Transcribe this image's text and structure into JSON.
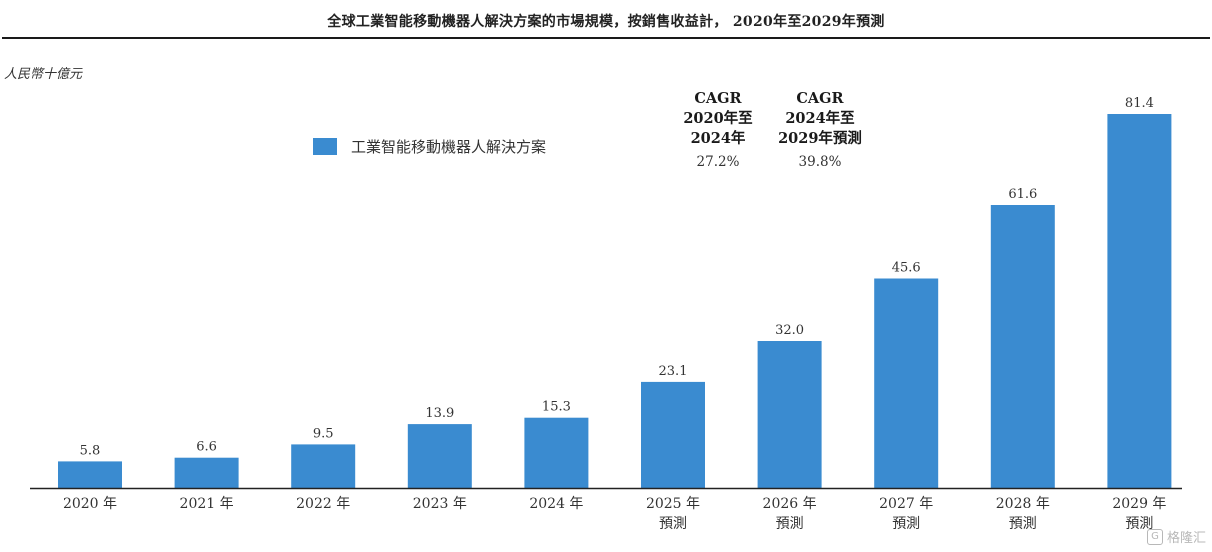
{
  "header": {
    "title": "全球工業智能移動機器人解決方案的市場規模，按銷售收益計， 2020年至2029年預測",
    "unit_label": "人民幣十億元"
  },
  "legend": {
    "label": "工業智能移動機器人解決方案",
    "color": "#3a8bd0"
  },
  "cagr": [
    {
      "title_lines": [
        "CAGR",
        "2020年至",
        "2024年"
      ],
      "value": "27.2%"
    },
    {
      "title_lines": [
        "CAGR",
        "2024年至",
        "2029年預測"
      ],
      "value": "39.8%"
    }
  ],
  "chart_data": {
    "type": "bar",
    "title": "全球工業智能移動機器人解決方案的市場規模，按銷售收益計， 2020年至2029年預測",
    "ylabel": "人民幣十億元",
    "ylim": [
      0,
      85
    ],
    "grid": false,
    "legend_position": "top-left",
    "categories": [
      [
        "2020 年"
      ],
      [
        "2021 年"
      ],
      [
        "2022 年"
      ],
      [
        "2023 年"
      ],
      [
        "2024 年"
      ],
      [
        "2025 年",
        "預測"
      ],
      [
        "2026 年",
        "預測"
      ],
      [
        "2027 年",
        "預測"
      ],
      [
        "2028 年",
        "預測"
      ],
      [
        "2029 年",
        "預測"
      ]
    ],
    "series": [
      {
        "name": "工業智能移動機器人解決方案",
        "color": "#3a8bd0",
        "values": [
          5.8,
          6.6,
          9.5,
          13.9,
          15.3,
          23.1,
          32.0,
          45.6,
          61.6,
          81.4
        ],
        "labels": [
          "5.8",
          "6.6",
          "9.5",
          "13.9",
          "15.3",
          "23.1",
          "32.0",
          "45.6",
          "61.6",
          "81.4"
        ]
      }
    ]
  },
  "watermark": {
    "icon": "logo-icon",
    "glyph": "G",
    "text": "格隆汇"
  }
}
